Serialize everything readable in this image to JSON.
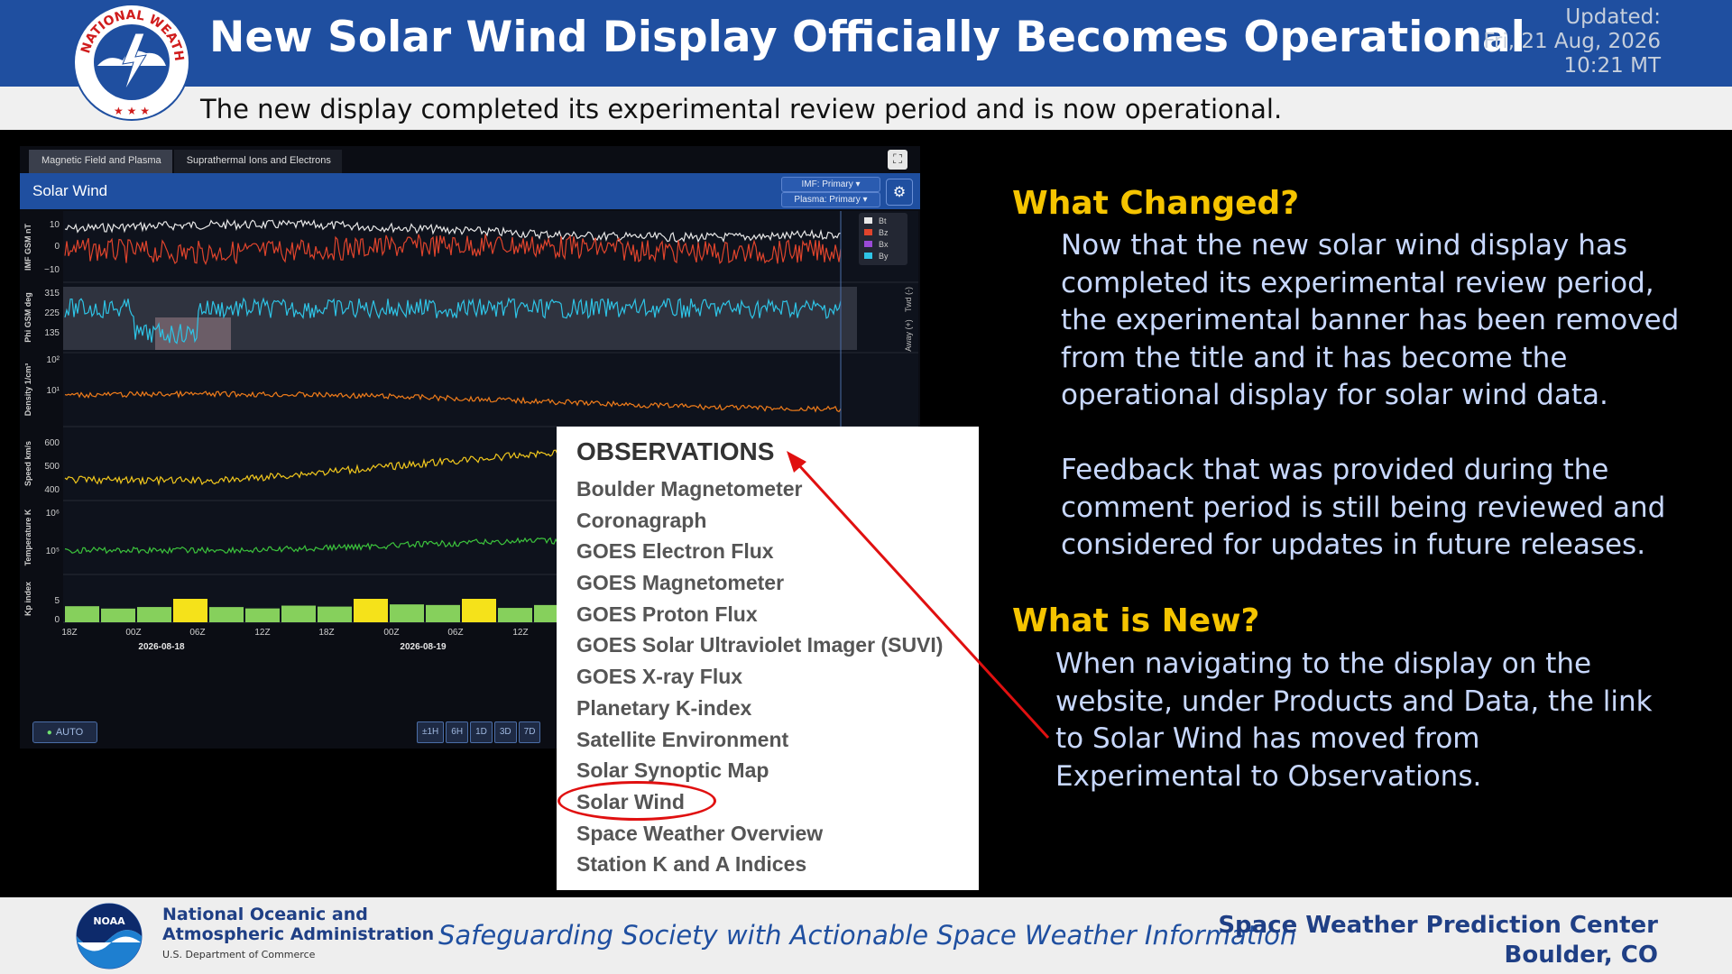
{
  "header": {
    "title": "New Solar Wind Display Officially Becomes Operational",
    "updated_label": "Updated:",
    "updated_date": "Fri, 21 Aug, 2026",
    "updated_time": "10:21  MT",
    "subtitle": "The new display completed its experimental review period and is now operational.",
    "logo_text": "NATIONAL WEATHER SERVICE"
  },
  "solar_wind_panel": {
    "tabs": [
      "Magnetic Field and Plasma",
      "Suprathermal Ions and Electrons"
    ],
    "title": "Solar Wind",
    "imf_select": "IMF: Primary",
    "plasma_select": "Plasma: Primary",
    "legend": [
      "Bt",
      "Bz",
      "Bx",
      "By"
    ],
    "plot_labels": [
      "IMF GSM nT",
      "Phi GSM deg",
      "Density 1/cm³",
      "Speed km/s",
      "Temperature K",
      "Kp index"
    ],
    "imf_ticks": [
      "10",
      "0",
      "−10"
    ],
    "phi_ticks": [
      "315",
      "225",
      "135"
    ],
    "phi_side_labels": [
      "Twd (-)",
      "Away (+)"
    ],
    "density_ticks": [
      "10²",
      "10¹"
    ],
    "speed_ticks": [
      "600",
      "500",
      "400"
    ],
    "temp_ticks": [
      "10⁶",
      "10⁵"
    ],
    "kp_ticks": [
      "5",
      "0"
    ],
    "time_ticks": [
      "18Z",
      "00Z",
      "06Z",
      "12Z",
      "18Z",
      "00Z",
      "06Z",
      "12Z"
    ],
    "date_labels": [
      "2026-08-18",
      "2026-08-19"
    ],
    "auto_button": "AUTO",
    "range_buttons": [
      "±1H",
      "6H",
      "1D",
      "3D",
      "7D"
    ]
  },
  "observations_menu": {
    "title": "OBSERVATIONS",
    "items": [
      "Boulder Magnetometer",
      "Coronagraph",
      "GOES Electron Flux",
      "GOES Magnetometer",
      "GOES Proton Flux",
      "GOES Solar Ultraviolet Imager (SUVI)",
      "GOES X-ray Flux",
      "Planetary K-index",
      "Satellite Environment",
      "Solar Synoptic Map",
      "Solar Wind",
      "Space Weather Overview",
      "Station K and A Indices"
    ],
    "highlighted_item": "Solar Wind"
  },
  "right_text": {
    "changed_heading": "What Changed?",
    "changed_lines": [
      "Now that the new solar wind display has",
      "completed its experimental review period,",
      "the experimental banner has been removed",
      "from the title and it has become the",
      "operational display for solar wind data."
    ],
    "feedback_lines": [
      "Feedback that was provided during the",
      "comment period is still being reviewed and",
      "considered for updates in future releases."
    ],
    "new_heading": "What is New?",
    "new_lines": [
      "When navigating to the display on the",
      "website, under Products and Data, the link",
      "to Solar Wind has moved from",
      "Experimental to Observations."
    ]
  },
  "footer": {
    "noaa_logo_text": "NOAA",
    "noaa_line1": "National Oceanic and",
    "noaa_line2": "Atmospheric Administration",
    "noaa_dept": "U.S. Department of Commerce",
    "tagline": "Safeguarding Society with Actionable Space Weather Information",
    "swpc_line1": "Space Weather Prediction Center",
    "swpc_line2": "Boulder, CO"
  },
  "colors": {
    "header_blue": "#1f4fa0",
    "heading_yellow": "#f5c400",
    "body_text": "#c8d8ff",
    "highlight_red": "#e01010"
  }
}
